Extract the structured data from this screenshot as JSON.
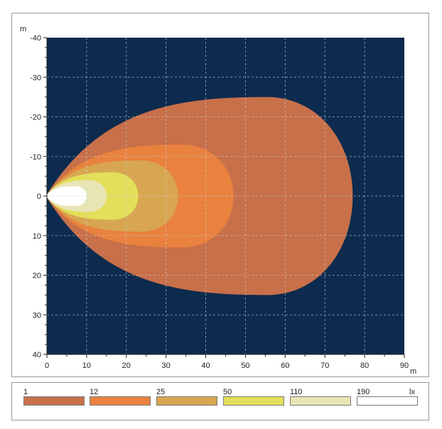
{
  "chart_data": {
    "type": "heatmap",
    "title": "",
    "x_unit": "m",
    "y_unit": "m",
    "xlim": [
      0,
      90
    ],
    "ylim": [
      -40,
      40
    ],
    "y_axis_inverted": true,
    "x_ticks": [
      "0",
      "10",
      "20",
      "30",
      "40",
      "50",
      "60",
      "70",
      "80",
      "90"
    ],
    "y_ticks": [
      "-40",
      "-30",
      "-20",
      "-10",
      "0",
      "10",
      "20",
      "30",
      "40"
    ],
    "grid": true,
    "background_color": "#0d2b4e",
    "legend_unit": "lx",
    "legend_placement": "bottom",
    "levels": [
      {
        "label": "1",
        "color": "#c8704a",
        "reach_x": 77,
        "half_width": 25
      },
      {
        "label": "12",
        "color": "#e9823e",
        "reach_x": 47,
        "half_width": 13
      },
      {
        "label": "25",
        "color": "#d8a650",
        "reach_x": 33,
        "half_width": 9
      },
      {
        "label": "50",
        "color": "#e3df5a",
        "reach_x": 23,
        "half_width": 6
      },
      {
        "label": "110",
        "color": "#e9e6b6",
        "reach_x": 15,
        "half_width": 4
      },
      {
        "label": "190",
        "color": "#ffffff",
        "reach_x": 10,
        "half_width": 2.5
      }
    ]
  }
}
